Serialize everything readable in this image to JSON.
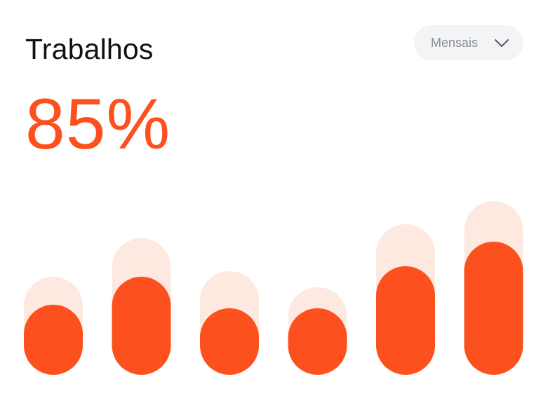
{
  "header": {
    "title": "Trabalhos"
  },
  "filter": {
    "selected": "Mensais",
    "icon": "chevron-down-icon"
  },
  "summary": {
    "value": "85%"
  },
  "colors": {
    "accent": "#fc511e",
    "track": "#fee9e1",
    "filter_bg": "#f3f4f6",
    "filter_text": "#8a8d93",
    "title_text": "#111111"
  },
  "chart_data": {
    "type": "bar",
    "categories": [
      "",
      "",
      "",
      "",
      "",
      ""
    ],
    "series": [
      {
        "values": [
          140,
          195,
          148,
          125,
          215,
          248
        ]
      },
      {
        "values": [
          100,
          140,
          95,
          95,
          155,
          190
        ]
      }
    ],
    "ylim": [
      0,
      260
    ],
    "grid": false
  }
}
